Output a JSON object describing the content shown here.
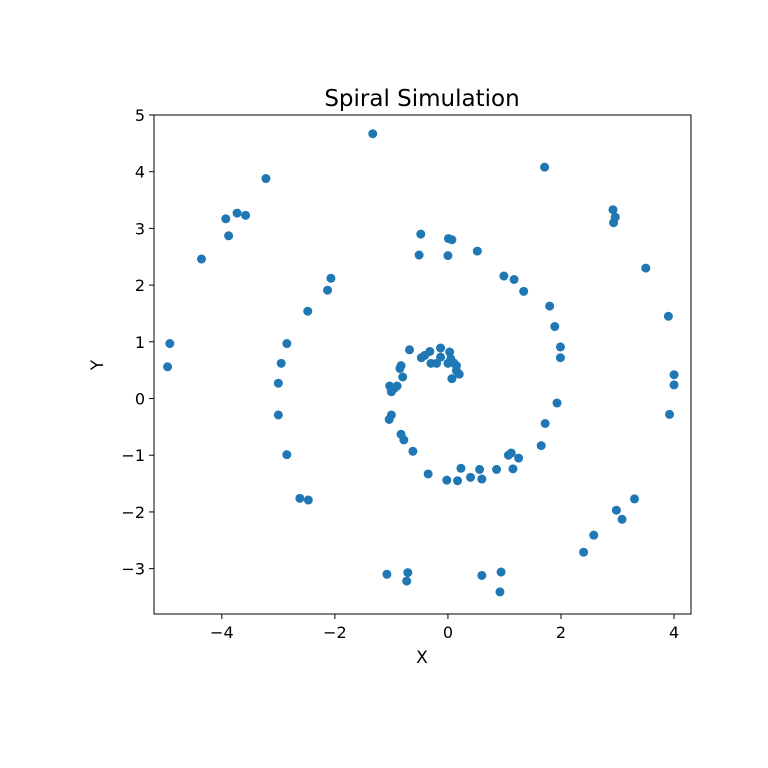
{
  "chart_data": {
    "type": "scatter",
    "title": "Spiral Simulation",
    "xlabel": "X",
    "ylabel": "Y",
    "xlim": [
      -5.2,
      4.3
    ],
    "ylim": [
      -3.8,
      5.0
    ],
    "xticks": [
      -4,
      -2,
      0,
      2,
      4
    ],
    "yticks": [
      -3,
      -2,
      -1,
      0,
      1,
      2,
      3,
      4,
      5
    ],
    "grid": false,
    "color": "#1f77b4",
    "series": [
      {
        "points": [
          [
            -1.33,
            4.67
          ],
          [
            1.71,
            4.08
          ],
          [
            -3.22,
            3.88
          ],
          [
            -3.73,
            3.27
          ],
          [
            -3.58,
            3.23
          ],
          [
            -3.93,
            3.17
          ],
          [
            -3.88,
            2.87
          ],
          [
            2.92,
            3.33
          ],
          [
            2.96,
            3.2
          ],
          [
            2.93,
            3.1
          ],
          [
            -4.36,
            2.46
          ],
          [
            3.5,
            2.3
          ],
          [
            -0.48,
            2.9
          ],
          [
            0.01,
            2.82
          ],
          [
            0.07,
            2.8
          ],
          [
            -0.51,
            2.53
          ],
          [
            0.0,
            2.52
          ],
          [
            0.52,
            2.6
          ],
          [
            0.99,
            2.16
          ],
          [
            1.17,
            2.1
          ],
          [
            1.34,
            1.89
          ],
          [
            -2.07,
            2.12
          ],
          [
            -2.13,
            1.91
          ],
          [
            -2.48,
            1.54
          ],
          [
            1.8,
            1.63
          ],
          [
            1.89,
            1.27
          ],
          [
            3.9,
            1.45
          ],
          [
            -4.92,
            0.97
          ],
          [
            -4.96,
            0.56
          ],
          [
            -2.85,
            0.97
          ],
          [
            -2.95,
            0.62
          ],
          [
            -3.0,
            0.27
          ],
          [
            -3.0,
            -0.29
          ],
          [
            -2.85,
            -0.99
          ],
          [
            1.99,
            0.91
          ],
          [
            1.99,
            0.72
          ],
          [
            4.0,
            0.42
          ],
          [
            4.0,
            0.24
          ],
          [
            3.92,
            -0.28
          ],
          [
            1.93,
            -0.08
          ],
          [
            1.72,
            -0.44
          ],
          [
            1.65,
            -0.83
          ],
          [
            -0.68,
            0.86
          ],
          [
            -0.47,
            0.72
          ],
          [
            -0.41,
            0.76
          ],
          [
            -0.32,
            0.83
          ],
          [
            -0.13,
            0.89
          ],
          [
            -0.13,
            0.73
          ],
          [
            -0.3,
            0.62
          ],
          [
            -0.2,
            0.62
          ],
          [
            0.03,
            0.82
          ],
          [
            0.05,
            0.7
          ],
          [
            0.1,
            0.63
          ],
          [
            0.15,
            0.58
          ],
          [
            0.15,
            0.49
          ],
          [
            0.2,
            0.43
          ],
          [
            0.07,
            0.35
          ],
          [
            0.0,
            0.62
          ],
          [
            -0.83,
            0.58
          ],
          [
            -0.85,
            0.53
          ],
          [
            -0.8,
            0.38
          ],
          [
            -1.03,
            0.22
          ],
          [
            -0.95,
            0.18
          ],
          [
            -1.0,
            0.12
          ],
          [
            -0.9,
            0.22
          ],
          [
            -1.0,
            -0.29
          ],
          [
            -1.04,
            -0.37
          ],
          [
            -0.83,
            -0.63
          ],
          [
            -0.78,
            -0.73
          ],
          [
            -0.62,
            -0.93
          ],
          [
            -0.35,
            -1.33
          ],
          [
            -0.02,
            -1.44
          ],
          [
            0.17,
            -1.45
          ],
          [
            0.23,
            -1.23
          ],
          [
            0.4,
            -1.39
          ],
          [
            0.56,
            -1.25
          ],
          [
            0.6,
            -1.42
          ],
          [
            0.86,
            -1.25
          ],
          [
            1.07,
            -1.0
          ],
          [
            1.12,
            -0.96
          ],
          [
            1.15,
            -1.24
          ],
          [
            1.25,
            -1.05
          ],
          [
            -2.62,
            -1.76
          ],
          [
            -2.47,
            -1.79
          ],
          [
            2.98,
            -1.97
          ],
          [
            3.3,
            -1.77
          ],
          [
            3.08,
            -2.13
          ],
          [
            2.58,
            -2.41
          ],
          [
            2.4,
            -2.71
          ],
          [
            -1.08,
            -3.1
          ],
          [
            -0.71,
            -3.07
          ],
          [
            -0.73,
            -3.22
          ],
          [
            0.6,
            -3.12
          ],
          [
            0.94,
            -3.06
          ],
          [
            0.92,
            -3.41
          ]
        ]
      }
    ]
  }
}
